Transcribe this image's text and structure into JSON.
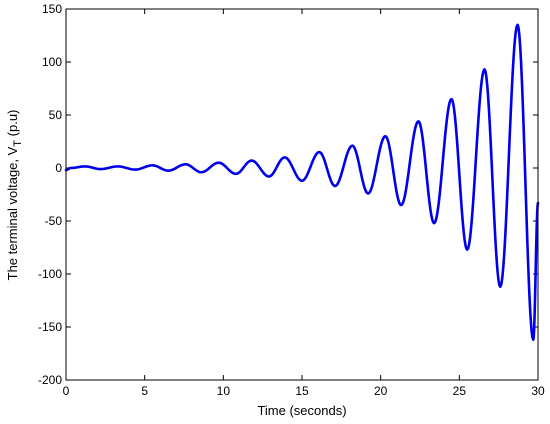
{
  "chart_data": {
    "type": "line",
    "title": "",
    "xlabel": "Time (seconds)",
    "ylabel": {
      "main": "The terminal voltage, V",
      "subscript": "T",
      "unit": " (p.u)"
    },
    "xlim": [
      0,
      30
    ],
    "ylim": [
      -200,
      150
    ],
    "xticks": [
      0,
      5,
      10,
      15,
      20,
      25,
      30
    ],
    "yticks": [
      -200,
      -150,
      -100,
      -50,
      0,
      50,
      100,
      150
    ],
    "grid": false,
    "color": "#0000ee",
    "series": [
      {
        "name": "",
        "description": "growing oscillation, period ~2.1 s",
        "x": [
          0.0,
          0.3,
          1.2,
          2.2,
          3.3,
          4.4,
          5.5,
          6.5,
          7.6,
          8.6,
          9.7,
          10.8,
          11.8,
          12.9,
          13.9,
          15.0,
          16.1,
          17.1,
          18.2,
          19.2,
          20.3,
          21.3,
          22.4,
          23.4,
          24.5,
          25.5,
          26.6,
          27.6,
          28.7,
          29.7,
          30.0
        ],
        "y": [
          -2,
          0,
          1.5,
          -1,
          1.5,
          -1.5,
          2.5,
          -2.5,
          3.5,
          -4,
          5,
          -5.5,
          7,
          -8,
          10,
          -12,
          15,
          -17,
          21,
          -24,
          30,
          -35,
          44,
          -52,
          65,
          -77,
          93,
          -112,
          135,
          -162,
          -33
        ]
      }
    ]
  }
}
